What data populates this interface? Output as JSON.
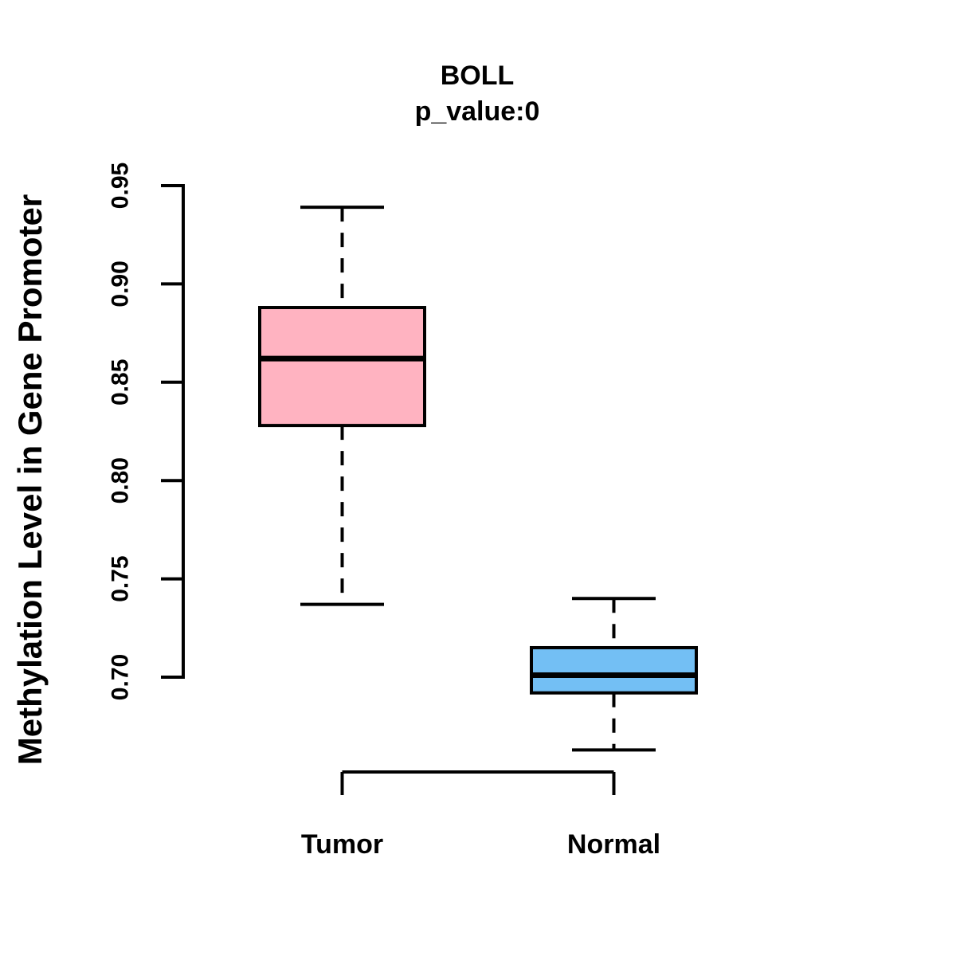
{
  "figure": {
    "background_color": "#FFFFFF",
    "text_color": "#000000"
  },
  "chart_data": {
    "type": "boxplot",
    "title": "BOLL",
    "subtitle": "p_value:0",
    "ylabel": "Methylation Level in Gene Promoter",
    "xlabel": "",
    "categories": [
      "Tumor",
      "Normal"
    ],
    "ytick_labels": [
      "0.70",
      "0.75",
      "0.80",
      "0.85",
      "0.90",
      "0.95"
    ],
    "yticks": [
      0.7,
      0.75,
      0.8,
      0.85,
      0.9,
      0.95
    ],
    "ylim": [
      0.655,
      0.952
    ],
    "grid": "off",
    "legend": "none",
    "box_border_color": "#000000",
    "whisker_style": "dashed",
    "series": [
      {
        "name": "Tumor",
        "fill_color": "#FFB3C1",
        "whisker_low": 0.737,
        "q1": 0.828,
        "median": 0.862,
        "q3": 0.888,
        "whisker_high": 0.939
      },
      {
        "name": "Normal",
        "fill_color": "#73BFF4",
        "whisker_low": 0.663,
        "q1": 0.692,
        "median": 0.701,
        "q3": 0.715,
        "whisker_high": 0.74
      }
    ]
  }
}
